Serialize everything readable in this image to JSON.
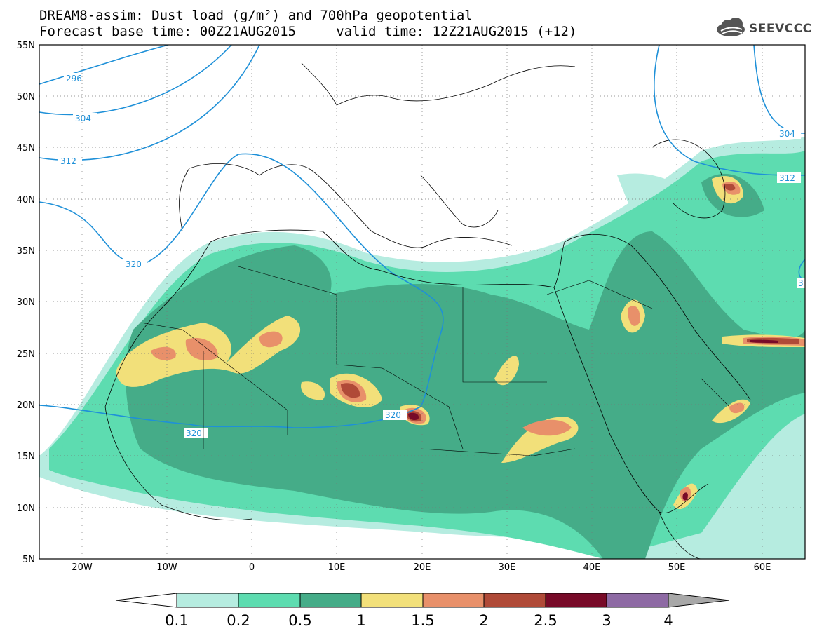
{
  "title_line1": "DREAM8-assim: Dust load (g/m²) and 700hPa geopotential",
  "title_line2": "Forecast base time: 00Z21AUG2015     valid time: 12Z21AUG2015 (+12)",
  "logo_text": "SEEVCCC",
  "map": {
    "lon_range": [
      -25,
      65
    ],
    "lat_range": [
      5,
      55
    ],
    "lat_ticks": [
      "55N",
      "50N",
      "45N",
      "40N",
      "35N",
      "30N",
      "25N",
      "20N",
      "15N",
      "10N",
      "5N"
    ],
    "lon_ticks": [
      "20W",
      "10W",
      "0",
      "10E",
      "20E",
      "30E",
      "40E",
      "50E",
      "60E"
    ]
  },
  "colorbar": {
    "levels": [
      "0.1",
      "0.2",
      "0.5",
      "1",
      "1.5",
      "2",
      "2.5",
      "3",
      "4"
    ],
    "colors": {
      "low_arrow": "#ffffff",
      "c1": "#b6ece0",
      "c2": "#5ddcb0",
      "c3": "#45ac88",
      "c4": "#f2e07a",
      "c5": "#e8906a",
      "c6": "#b04a38",
      "c7": "#780a28",
      "c8": "#8e6aa4",
      "high_arrow": "#a8a8a8"
    }
  },
  "contours": {
    "color": "#1e90d8",
    "labels": [
      "296",
      "304",
      "312",
      "320",
      "320",
      "320",
      "304",
      "312",
      "3"
    ]
  }
}
